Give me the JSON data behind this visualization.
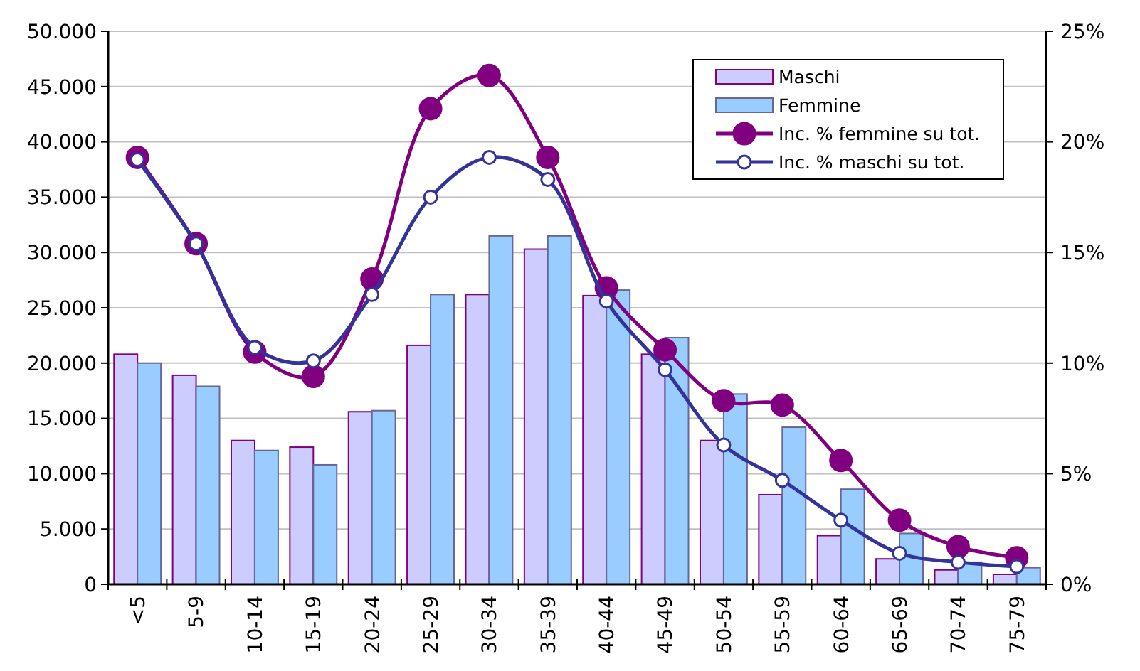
{
  "chart_data": {
    "type": "bar",
    "categories": [
      "<5",
      "5-9",
      "10-14",
      "15-19",
      "20-24",
      "25-29",
      "30-34",
      "35-39",
      "40-44",
      "45-49",
      "50-54",
      "55-59",
      "60-64",
      "65-69",
      "70-74",
      "75-79"
    ],
    "series": [
      {
        "name": "Maschi",
        "color": "#ccccff",
        "values": [
          20800,
          18900,
          13000,
          12400,
          15600,
          21600,
          26200,
          30300,
          26100,
          20800,
          13000,
          8100,
          4400,
          2300,
          1300,
          900
        ]
      },
      {
        "name": "Femmine",
        "color": "#99ccff",
        "values": [
          20000,
          17900,
          12100,
          10800,
          15700,
          26200,
          31500,
          31500,
          26600,
          22300,
          17200,
          14200,
          8600,
          4600,
          2000,
          1500
        ]
      },
      {
        "name": "Inc. % femmine su tot.",
        "type": "line",
        "axis": "y2",
        "color": "#800080",
        "values": [
          19.3,
          15.4,
          10.5,
          9.4,
          13.8,
          21.5,
          23.0,
          19.3,
          13.4,
          10.6,
          8.3,
          8.1,
          5.6,
          2.9,
          1.7,
          1.2
        ]
      },
      {
        "name": "Inc. % maschi su tot.",
        "type": "line",
        "axis": "y2",
        "color": "#333399",
        "values": [
          19.2,
          15.4,
          10.7,
          10.1,
          13.1,
          17.5,
          19.3,
          18.3,
          12.8,
          9.7,
          6.3,
          4.7,
          2.9,
          1.4,
          1.0,
          0.8
        ]
      }
    ],
    "ylim": [
      0,
      50000
    ],
    "yticks": [
      {
        "value": 0,
        "label": "0"
      },
      {
        "value": 5000,
        "label": "5.000"
      },
      {
        "value": 10000,
        "label": "10.000"
      },
      {
        "value": 15000,
        "label": "15.000"
      },
      {
        "value": 20000,
        "label": "20.000"
      },
      {
        "value": 25000,
        "label": "25.000"
      },
      {
        "value": 30000,
        "label": "30.000"
      },
      {
        "value": 35000,
        "label": "35.000"
      },
      {
        "value": 40000,
        "label": "40.000"
      },
      {
        "value": 45000,
        "label": "45.000"
      },
      {
        "value": 50000,
        "label": "50.000"
      }
    ],
    "y2lim": [
      0,
      25
    ],
    "y2ticks": [
      {
        "value": 0,
        "label": "0%"
      },
      {
        "value": 5,
        "label": "5%"
      },
      {
        "value": 10,
        "label": "10%"
      },
      {
        "value": 15,
        "label": "15%"
      },
      {
        "value": 20,
        "label": "20%"
      },
      {
        "value": 25,
        "label": "25%"
      }
    ],
    "grid": "y",
    "legend": "top right",
    "marker": "circle",
    "line_style": "solid"
  }
}
